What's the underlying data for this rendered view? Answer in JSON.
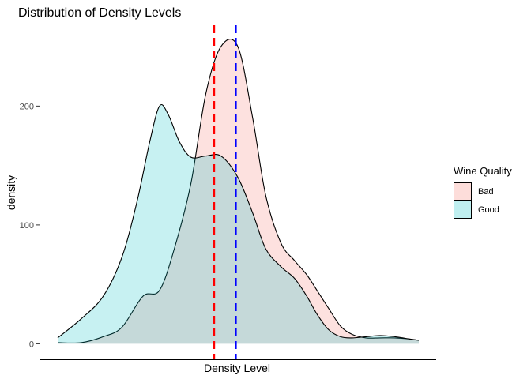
{
  "chart_data": {
    "type": "area",
    "title": "Distribution of Density Levels",
    "xlabel": "Density Level",
    "ylabel": "density",
    "xlim": [
      0,
      1
    ],
    "ylim": [
      -13,
      268
    ],
    "yticks": [
      0,
      100,
      200
    ],
    "grid": false,
    "legend": {
      "title": "Wine Quality",
      "placement": "right"
    },
    "series": [
      {
        "name": "Bad",
        "color": "#F8766D",
        "x": [
          0.0,
          0.065,
          0.126,
          0.178,
          0.236,
          0.282,
          0.323,
          0.369,
          0.41,
          0.452,
          0.499,
          0.54,
          0.576,
          0.618,
          0.656,
          0.69,
          0.718,
          0.75,
          0.783,
          0.815,
          0.854,
          0.893,
          0.934,
          0.976,
          1.0
        ],
        "y": [
          1,
          1,
          6,
          14,
          40,
          45,
          80,
          135,
          210,
          250,
          250,
          190,
          125,
          85,
          70,
          58,
          45,
          30,
          15,
          8,
          5,
          5,
          5,
          4,
          3
        ]
      },
      {
        "name": "Good",
        "color": "#00BFC4",
        "x": [
          0.0,
          0.065,
          0.126,
          0.178,
          0.22,
          0.255,
          0.282,
          0.306,
          0.337,
          0.369,
          0.41,
          0.452,
          0.499,
          0.54,
          0.576,
          0.618,
          0.656,
          0.69,
          0.718,
          0.75,
          0.783,
          0.815,
          0.854,
          0.893,
          0.934,
          0.976,
          1.0
        ],
        "y": [
          5,
          21,
          40,
          73,
          120,
          170,
          200,
          193,
          170,
          157,
          158,
          158,
          140,
          110,
          80,
          65,
          55,
          40,
          25,
          12,
          6,
          5,
          6,
          7,
          6,
          4,
          3
        ]
      }
    ],
    "vlines": [
      {
        "x": 0.433,
        "color": "#FF0000",
        "style": "dashed"
      },
      {
        "x": 0.493,
        "color": "#0000FF",
        "style": "dashed"
      }
    ]
  }
}
